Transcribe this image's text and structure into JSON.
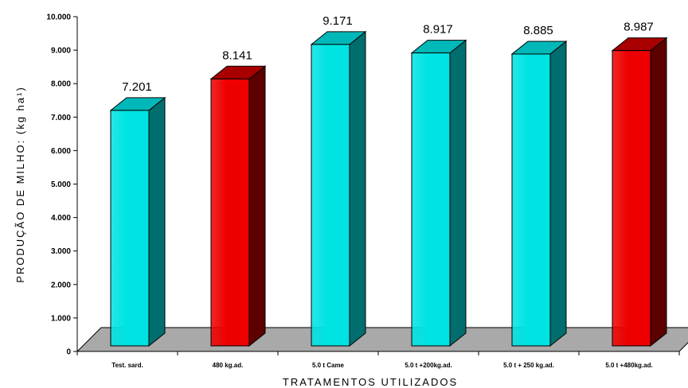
{
  "chart_data": {
    "type": "bar",
    "categories": [
      "Test. sard.",
      "480 kg.ad.",
      "5.0 t Came",
      "5.0 t +200kg.ad.",
      "5.0 t + 250 kg.ad.",
      "5.0 t +480kg.ad."
    ],
    "values": [
      7201,
      8141,
      9171,
      8917,
      8885,
      8987
    ],
    "value_labels": [
      "7.201",
      "8.141",
      "9.171",
      "8.917",
      "8.885",
      "8.987"
    ],
    "bar_colors": [
      "cyan",
      "red",
      "cyan",
      "cyan",
      "cyan",
      "red"
    ],
    "xlabel": "TRATAMENTOS UTILIZADOS",
    "ylabel": "PRODUÇÃO DE MILHO: (kg ha¹)",
    "ylim": [
      0,
      10000
    ],
    "yticks": [
      0,
      1000,
      2000,
      3000,
      4000,
      5000,
      6000,
      7000,
      8000,
      9000,
      10000
    ],
    "ytick_labels": [
      "0",
      "1.000",
      "2.000",
      "3.000",
      "4.000",
      "5.000",
      "6.000",
      "7.000",
      "8.000",
      "9.000",
      "10.000"
    ],
    "grid": false,
    "legend": "none",
    "style": "3d-columns"
  },
  "colors": {
    "cyan_front": "#00e3e3",
    "cyan_side": "#006e6e",
    "cyan_top": "#00b8b8",
    "red_front": "#ee0000",
    "red_side": "#5c0000",
    "red_top": "#a80000",
    "floor": "#a9a9a9"
  }
}
